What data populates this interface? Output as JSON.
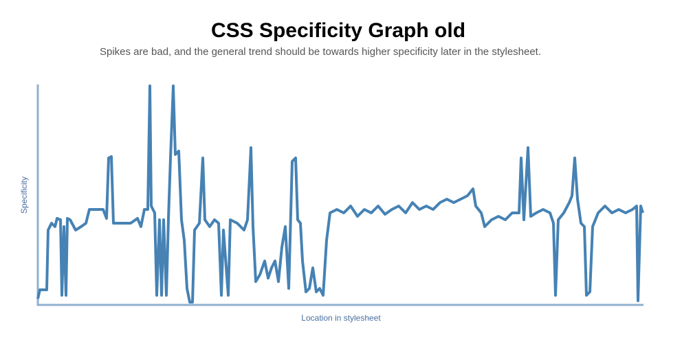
{
  "chart_data": {
    "type": "line",
    "title": "CSS Specificity Graph old",
    "subtitle": "Spikes are bad, and the general trend should be towards higher specificity later in the stylesheet.",
    "x_label": "Location in stylesheet",
    "y_label": "Specificity",
    "color": "#4682b4",
    "xlim": [
      0,
      880
    ],
    "ylim": [
      0,
      318
    ],
    "x": [
      0,
      3,
      13,
      15,
      20,
      25,
      28,
      33,
      35,
      38,
      41,
      43,
      47,
      55,
      63,
      70,
      75,
      95,
      100,
      103,
      107,
      110,
      135,
      145,
      150,
      155,
      160,
      163,
      165,
      170,
      173,
      177,
      180,
      183,
      187,
      190,
      193,
      197,
      200,
      205,
      209,
      213,
      217,
      221,
      225,
      228,
      235,
      240,
      243,
      250,
      257,
      263,
      267,
      270,
      277,
      280,
      290,
      295,
      300,
      305,
      310,
      313,
      317,
      323,
      330,
      335,
      340,
      345,
      350,
      355,
      360,
      365,
      370,
      375,
      378,
      382,
      385,
      390,
      395,
      400,
      405,
      410,
      415,
      420,
      425,
      435,
      445,
      455,
      465,
      475,
      485,
      495,
      505,
      515,
      525,
      535,
      545,
      555,
      565,
      575,
      585,
      595,
      605,
      615,
      625,
      633,
      637,
      645,
      650,
      660,
      670,
      680,
      690,
      700,
      703,
      707,
      713,
      717,
      725,
      735,
      745,
      750,
      753,
      757,
      765,
      773,
      777,
      781,
      785,
      790,
      795,
      798,
      803,
      807,
      815,
      825,
      835,
      845,
      855,
      865,
      871,
      873,
      877,
      880
    ],
    "values": [
      8,
      21,
      21,
      108,
      118,
      113,
      125,
      123,
      13,
      113,
      13,
      125,
      123,
      108,
      113,
      118,
      138,
      138,
      125,
      213,
      215,
      118,
      118,
      125,
      113,
      138,
      138,
      318,
      143,
      133,
      13,
      123,
      13,
      123,
      13,
      125,
      213,
      318,
      218,
      223,
      123,
      93,
      23,
      3,
      3,
      108,
      118,
      213,
      123,
      113,
      123,
      118,
      13,
      108,
      13,
      123,
      118,
      113,
      108,
      123,
      228,
      113,
      33,
      43,
      63,
      38,
      53,
      63,
      33,
      83,
      113,
      23,
      208,
      213,
      123,
      118,
      63,
      18,
      23,
      53,
      18,
      23,
      13,
      93,
      133,
      138,
      133,
      143,
      128,
      138,
      133,
      143,
      131,
      138,
      143,
      133,
      148,
      138,
      143,
      138,
      148,
      153,
      148,
      153,
      158,
      168,
      143,
      133,
      113,
      123,
      128,
      123,
      133,
      133,
      213,
      123,
      228,
      128,
      133,
      138,
      133,
      118,
      13,
      123,
      133,
      148,
      158,
      213,
      153,
      118,
      113,
      13,
      18,
      113,
      133,
      143,
      133,
      138,
      133,
      138,
      143,
      5,
      143,
      133
    ]
  }
}
